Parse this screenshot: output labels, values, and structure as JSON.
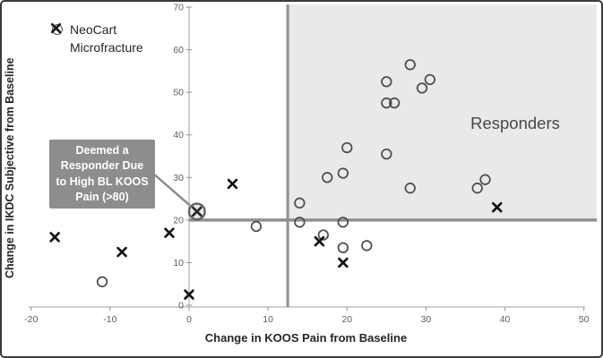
{
  "figure": {
    "legend": {
      "items": [
        {
          "label": "NeoCart",
          "marker": "circle"
        },
        {
          "label": "Microfracture",
          "marker": "x"
        }
      ]
    },
    "annotation": {
      "lines": [
        "Deemed a",
        "Responder Due",
        "to High BL KOOS",
        "Pain (>80)"
      ]
    },
    "region_label": "Responders"
  },
  "chart_data": {
    "type": "scatter",
    "title": "",
    "xlabel": "Change in KOOS Pain from Baseline",
    "ylabel": "Change in IKDC Subjective from Baseline",
    "xlim": [
      -20,
      50
    ],
    "ylim": [
      0,
      70
    ],
    "x_ticks": [
      -20,
      -10,
      0,
      10,
      20,
      30,
      40,
      50
    ],
    "y_ticks": [
      0,
      10,
      20,
      30,
      40,
      50,
      60,
      70
    ],
    "grid": false,
    "legend_position": "top-left",
    "responder_thresholds": {
      "koos_pain_change": 12.5,
      "ikdc_change": 20
    },
    "shaded_region": {
      "label": "Responders",
      "x_range": [
        12.5,
        50
      ],
      "y_range": [
        20,
        70
      ]
    },
    "series": [
      {
        "name": "NeoCart",
        "marker": "circle",
        "points": [
          [
            -11,
            5.5
          ],
          [
            8.5,
            18.5
          ],
          [
            14,
            19.5
          ],
          [
            14,
            24
          ],
          [
            17,
            16.5
          ],
          [
            17.5,
            30
          ],
          [
            19.5,
            31
          ],
          [
            19.5,
            19.5
          ],
          [
            19.5,
            13.5
          ],
          [
            22.5,
            14
          ],
          [
            20,
            37
          ],
          [
            25,
            35.5
          ],
          [
            25,
            52.5
          ],
          [
            25,
            47.5
          ],
          [
            26,
            47.5
          ],
          [
            28,
            56.5
          ],
          [
            29.5,
            51
          ],
          [
            30.5,
            53
          ],
          [
            28,
            27.5
          ],
          [
            36.5,
            27.5
          ],
          [
            37.5,
            29.5
          ]
        ]
      },
      {
        "name": "Microfracture",
        "marker": "x",
        "points": [
          [
            -17,
            16
          ],
          [
            -8.5,
            12.5
          ],
          [
            -2.5,
            17
          ],
          [
            0,
            2.5
          ],
          [
            1,
            22
          ],
          [
            5.5,
            28.5
          ],
          [
            16.5,
            15
          ],
          [
            19.5,
            10
          ],
          [
            39,
            23
          ]
        ]
      }
    ],
    "highlighted_point": {
      "series": "Microfracture",
      "x": 1,
      "y": 22,
      "annotation": "Deemed a Responder Due to High BL KOOS Pain (>80)"
    },
    "colors": {
      "shaded_region": "#e9e9e9",
      "threshold_line": "#8f8f8f",
      "annotation_box": "#8d8d8d",
      "annotation_text": "#ffffff",
      "marker_circle": "#4a4a4a",
      "marker_x": "#141414",
      "axis_line": "#b5b5b5",
      "tick_mark": "#9a9a9a",
      "tick_label": "#5d5d5d",
      "region_label": "#484848",
      "leader_line": "#8a8a8a"
    }
  }
}
